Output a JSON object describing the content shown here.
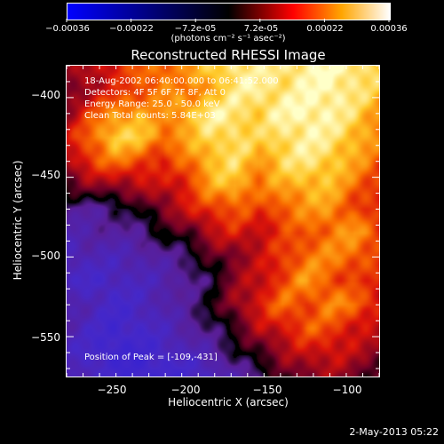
{
  "chart_data": {
    "type": "heatmap",
    "title": "Reconstructed RHESSI Image",
    "xlabel": "Heliocentric X (arcsec)",
    "ylabel": "Heliocentric Y (arcsec)",
    "xlim": [
      -275,
      -85
    ],
    "ylim": [
      -575,
      -380
    ],
    "xticks": [
      -250,
      -200,
      -150,
      -100
    ],
    "yticks": [
      -400,
      -450,
      -500,
      -550
    ],
    "colorbar": {
      "ticks": [
        "-0.00036",
        "-0.00022",
        "-7.2e-05",
        "7.2e-05",
        "0.00022",
        "0.00036"
      ],
      "units": "(photons cm⁻² s⁻¹ asec⁻²)",
      "range": [
        -0.00036,
        0.00036
      ]
    },
    "annotations": {
      "line1": "18-Aug-2002 06:40:00.000 to 06:41:52.000",
      "line2": "Detectors: 4F 5F 6F 7F 8F, Att 0",
      "line3": "Energy Range: 25.0 - 50.0 keV",
      "line4": "Clean     Total counts: 5.84E+03",
      "peak": "Position of Peak = [-109,-431]"
    },
    "peak_position": [
      -109,
      -431
    ],
    "intensity_grid": [
      [
        0.2,
        0.3,
        0.45,
        0.55,
        0.6,
        0.7,
        0.8,
        0.95,
        0.9,
        0.92,
        0.96,
        0.98,
        0.95,
        0.85
      ],
      [
        0.15,
        0.3,
        0.4,
        0.5,
        0.7,
        0.55,
        0.75,
        0.9,
        0.95,
        0.9,
        0.95,
        1.0,
        0.9,
        0.8
      ],
      [
        0.25,
        0.5,
        0.7,
        0.75,
        0.6,
        0.8,
        0.95,
        0.9,
        0.85,
        0.95,
        1.0,
        0.95,
        0.85,
        0.7
      ],
      [
        0.35,
        0.6,
        0.85,
        0.8,
        0.65,
        0.7,
        0.85,
        0.9,
        0.8,
        0.9,
        0.95,
        0.9,
        0.8,
        0.65
      ],
      [
        0.3,
        0.5,
        0.6,
        0.55,
        0.4,
        0.6,
        0.8,
        0.85,
        0.7,
        0.85,
        0.9,
        0.85,
        0.7,
        0.55
      ],
      [
        0.1,
        0.2,
        0.25,
        0.3,
        0.35,
        0.45,
        0.7,
        0.8,
        0.6,
        0.7,
        0.8,
        0.75,
        0.6,
        0.5
      ],
      [
        -0.15,
        -0.2,
        -0.1,
        0.0,
        0.2,
        0.35,
        0.5,
        0.55,
        0.45,
        0.6,
        0.65,
        0.7,
        0.5,
        0.4
      ],
      [
        -0.3,
        -0.25,
        -0.2,
        -0.15,
        0.0,
        0.1,
        0.3,
        0.4,
        0.35,
        0.45,
        0.55,
        0.6,
        0.7,
        0.55
      ],
      [
        -0.4,
        -0.3,
        -0.35,
        -0.3,
        -0.2,
        -0.1,
        0.1,
        0.2,
        0.3,
        0.5,
        0.6,
        0.65,
        0.6,
        0.5
      ],
      [
        -0.35,
        -0.45,
        -0.4,
        -0.35,
        -0.3,
        -0.2,
        -0.05,
        0.2,
        0.35,
        0.5,
        0.7,
        0.55,
        0.45,
        0.4
      ],
      [
        -0.25,
        -0.35,
        -0.45,
        -0.4,
        -0.3,
        -0.15,
        0.0,
        0.25,
        0.4,
        0.6,
        0.5,
        0.65,
        0.6,
        0.45
      ],
      [
        -0.3,
        -0.4,
        -0.5,
        -0.45,
        -0.35,
        -0.25,
        -0.1,
        0.05,
        0.3,
        0.4,
        0.55,
        0.5,
        0.4,
        0.3
      ],
      [
        -0.35,
        -0.45,
        -0.55,
        -0.5,
        -0.45,
        -0.35,
        -0.25,
        -0.05,
        0.1,
        0.25,
        0.35,
        0.4,
        0.3,
        0.2
      ],
      [
        -0.3,
        -0.4,
        -0.45,
        -0.55,
        -0.5,
        -0.45,
        -0.4,
        -0.25,
        -0.1,
        0.1,
        0.2,
        0.25,
        0.15,
        0.1
      ]
    ]
  },
  "footer": {
    "datestamp": "2-May-2013 05:22"
  }
}
